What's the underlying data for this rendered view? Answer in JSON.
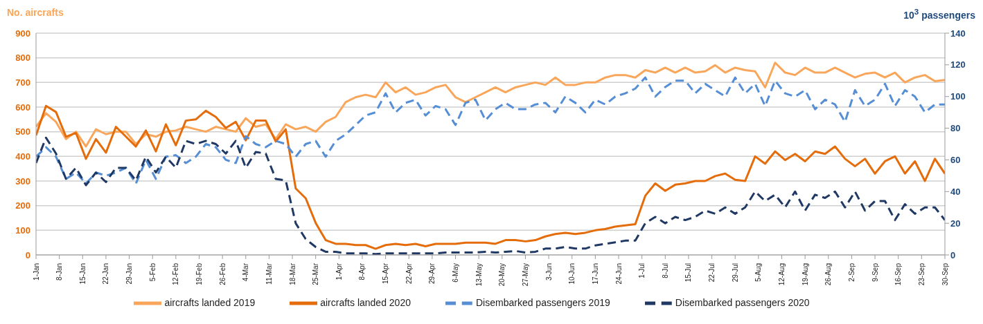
{
  "chart_data": {
    "type": "line",
    "ylabel": "No. aircrafts",
    "y2label": "10$^{3}$ passengers",
    "x": [
      "2020-01-01",
      "2020-01-04",
      "2020-01-07",
      "2020-01-10",
      "2020-01-13",
      "2020-01-16",
      "2020-01-19",
      "2020-01-22",
      "2020-01-25",
      "2020-01-28",
      "2020-01-31",
      "2020-02-03",
      "2020-02-06",
      "2020-02-09",
      "2020-02-12",
      "2020-02-15",
      "2020-02-18",
      "2020-02-21",
      "2020-02-24",
      "2020-02-27",
      "2020-03-01",
      "2020-03-04",
      "2020-03-07",
      "2020-03-10",
      "2020-03-13",
      "2020-03-16",
      "2020-03-19",
      "2020-03-22",
      "2020-03-25",
      "2020-03-28",
      "2020-03-31",
      "2020-04-03",
      "2020-04-06",
      "2020-04-09",
      "2020-04-12",
      "2020-04-15",
      "2020-04-18",
      "2020-04-21",
      "2020-04-24",
      "2020-04-27",
      "2020-04-30",
      "2020-05-03",
      "2020-05-06",
      "2020-05-09",
      "2020-05-12",
      "2020-05-15",
      "2020-05-18",
      "2020-05-21",
      "2020-05-24",
      "2020-05-27",
      "2020-05-30",
      "2020-06-02",
      "2020-06-05",
      "2020-06-08",
      "2020-06-11",
      "2020-06-14",
      "2020-06-17",
      "2020-06-20",
      "2020-06-23",
      "2020-06-26",
      "2020-06-29",
      "2020-07-02",
      "2020-07-05",
      "2020-07-08",
      "2020-07-11",
      "2020-07-14",
      "2020-07-17",
      "2020-07-20",
      "2020-07-23",
      "2020-07-26",
      "2020-07-29",
      "2020-08-01",
      "2020-08-04",
      "2020-08-07",
      "2020-08-10",
      "2020-08-13",
      "2020-08-16",
      "2020-08-19",
      "2020-08-22",
      "2020-08-25",
      "2020-08-28",
      "2020-08-31",
      "2020-09-03",
      "2020-09-06",
      "2020-09-09",
      "2020-09-12",
      "2020-09-15",
      "2020-09-18",
      "2020-09-21",
      "2020-09-24",
      "2020-09-27",
      "2020-09-30"
    ],
    "series": [
      {
        "name": "aircrafts landed 2019",
        "color": "#f9a65a",
        "line_style": "solid",
        "values": [
          520,
          575,
          540,
          470,
          500,
          440,
          510,
          490,
          500,
          500,
          450,
          490,
          480,
          500,
          505,
          520,
          510,
          500,
          520,
          510,
          500,
          555,
          520,
          530,
          470,
          530,
          510,
          520,
          500,
          540,
          560,
          620,
          640,
          650,
          640,
          700,
          660,
          680,
          650,
          660,
          680,
          690,
          640,
          620,
          640,
          660,
          680,
          660,
          680,
          690,
          700,
          690,
          720,
          690,
          690,
          700,
          700,
          720,
          730,
          730,
          720,
          750,
          740,
          760,
          740,
          760,
          740,
          745,
          770,
          740,
          760,
          750,
          745,
          680,
          780,
          740,
          730,
          760,
          740,
          740,
          760,
          740,
          720,
          735,
          740,
          720,
          740,
          700,
          720,
          730,
          705,
          710
        ]
      },
      {
        "name": "aircrafts landed 2020",
        "color": "#e46c0a",
        "line_style": "solid",
        "values": [
          485,
          605,
          580,
          480,
          495,
          390,
          470,
          415,
          520,
          480,
          440,
          505,
          420,
          530,
          445,
          545,
          550,
          585,
          560,
          515,
          540,
          465,
          545,
          545,
          460,
          510,
          270,
          230,
          130,
          60,
          45,
          45,
          40,
          40,
          25,
          40,
          45,
          40,
          45,
          35,
          45,
          45,
          45,
          50,
          50,
          50,
          45,
          60,
          60,
          55,
          60,
          75,
          85,
          90,
          85,
          90,
          100,
          105,
          115,
          120,
          125,
          240,
          290,
          260,
          285,
          290,
          300,
          300,
          320,
          330,
          305,
          300,
          400,
          370,
          420,
          385,
          410,
          380,
          420,
          410,
          440,
          390,
          360,
          390,
          330,
          380,
          400,
          330,
          380,
          300,
          390,
          330
        ]
      },
      {
        "name": "Disembarked passengers 2019",
        "color": "#558ed5",
        "line_style": "dashed",
        "axis": "y2",
        "values": [
          62,
          68,
          62,
          48,
          52,
          45,
          52,
          50,
          52,
          55,
          45,
          60,
          48,
          62,
          63,
          58,
          62,
          70,
          68,
          60,
          58,
          75,
          70,
          68,
          72,
          70,
          62,
          70,
          72,
          62,
          72,
          76,
          82,
          88,
          90,
          102,
          90,
          96,
          98,
          88,
          94,
          92,
          82,
          96,
          98,
          85,
          92,
          96,
          92,
          92,
          95,
          96,
          90,
          100,
          96,
          90,
          98,
          95,
          100,
          102,
          105,
          112,
          100,
          106,
          110,
          110,
          102,
          108,
          104,
          100,
          112,
          102,
          108,
          94,
          110,
          102,
          100,
          104,
          92,
          98,
          95,
          84,
          104,
          94,
          98,
          108,
          94,
          104,
          100,
          90,
          95,
          95
        ]
      },
      {
        "name": "Disembarked passengers 2020",
        "color": "#1f3864",
        "line_style": "dashed",
        "axis": "y2",
        "values": [
          58,
          74,
          64,
          48,
          55,
          44,
          52,
          46,
          55,
          55,
          47,
          62,
          52,
          62,
          55,
          72,
          70,
          72,
          70,
          64,
          72,
          55,
          65,
          64,
          48,
          47,
          20,
          10,
          5,
          2,
          2,
          1,
          1,
          1,
          0.5,
          1,
          1,
          1,
          1,
          1,
          1,
          1.5,
          1.5,
          1.5,
          1.5,
          2,
          1.5,
          2,
          2.5,
          1.5,
          2,
          4,
          4,
          5,
          4,
          4,
          6,
          7,
          8,
          9,
          9,
          20,
          24,
          20,
          24,
          22,
          24,
          28,
          26,
          30,
          26,
          30,
          40,
          34,
          38,
          30,
          40,
          28,
          38,
          36,
          40,
          30,
          40,
          28,
          34,
          34,
          22,
          32,
          26,
          30,
          30,
          22
        ]
      }
    ],
    "xlim": [
      "2020-01-01",
      "2020-09-30"
    ],
    "xticks": [
      {
        "value": "2020-01-01",
        "label": "1-Jan"
      },
      {
        "value": "2020-01-08",
        "label": "8-Jan"
      },
      {
        "value": "2020-01-15",
        "label": "15-Jan"
      },
      {
        "value": "2020-01-22",
        "label": "22-Jan"
      },
      {
        "value": "2020-01-29",
        "label": "29-Jan"
      },
      {
        "value": "2020-02-05",
        "label": "5-Feb"
      },
      {
        "value": "2020-02-12",
        "label": "12-Feb"
      },
      {
        "value": "2020-02-19",
        "label": "19-Feb"
      },
      {
        "value": "2020-02-26",
        "label": "26-Feb"
      },
      {
        "value": "2020-03-04",
        "label": "4-Mar"
      },
      {
        "value": "2020-03-11",
        "label": "11-Mar"
      },
      {
        "value": "2020-03-18",
        "label": "18-Mar"
      },
      {
        "value": "2020-03-25",
        "label": "25-Mar"
      },
      {
        "value": "2020-04-01",
        "label": "1-Apr"
      },
      {
        "value": "2020-04-08",
        "label": "8-Apr"
      },
      {
        "value": "2020-04-15",
        "label": "15-Apr"
      },
      {
        "value": "2020-04-22",
        "label": "22-Apr"
      },
      {
        "value": "2020-04-29",
        "label": "29-Apr"
      },
      {
        "value": "2020-05-06",
        "label": "6-May"
      },
      {
        "value": "2020-05-13",
        "label": "13-May"
      },
      {
        "value": "2020-05-20",
        "label": "20-May"
      },
      {
        "value": "2020-05-27",
        "label": "27-May"
      },
      {
        "value": "2020-06-03",
        "label": "3-Jun"
      },
      {
        "value": "2020-06-10",
        "label": "10-Jun"
      },
      {
        "value": "2020-06-17",
        "label": "17-Jun"
      },
      {
        "value": "2020-06-24",
        "label": "24-Jun"
      },
      {
        "value": "2020-07-01",
        "label": "1-Jul"
      },
      {
        "value": "2020-07-08",
        "label": "8-Jul"
      },
      {
        "value": "2020-07-15",
        "label": "15-Jul"
      },
      {
        "value": "2020-07-22",
        "label": "22-Jul"
      },
      {
        "value": "2020-07-29",
        "label": "29-Jul"
      },
      {
        "value": "2020-08-05",
        "label": "5-Aug"
      },
      {
        "value": "2020-08-12",
        "label": "12-Aug"
      },
      {
        "value": "2020-08-19",
        "label": "19-Aug"
      },
      {
        "value": "2020-08-26",
        "label": "26-Aug"
      },
      {
        "value": "2020-09-02",
        "label": "2-Sep"
      },
      {
        "value": "2020-09-09",
        "label": "9-Sep"
      },
      {
        "value": "2020-09-16",
        "label": "16-Sep"
      },
      {
        "value": "2020-09-23",
        "label": "23-Sep"
      },
      {
        "value": "2020-09-30",
        "label": "30-Sep"
      }
    ],
    "ylim": [
      0,
      900
    ],
    "yticks": [
      0,
      100,
      200,
      300,
      400,
      500,
      600,
      700,
      800,
      900
    ],
    "y2lim": [
      0,
      140
    ],
    "y2ticks": [
      0,
      20,
      40,
      60,
      80,
      100,
      120,
      140
    ],
    "grid": "y",
    "legend": "bottom",
    "marker": "none"
  }
}
